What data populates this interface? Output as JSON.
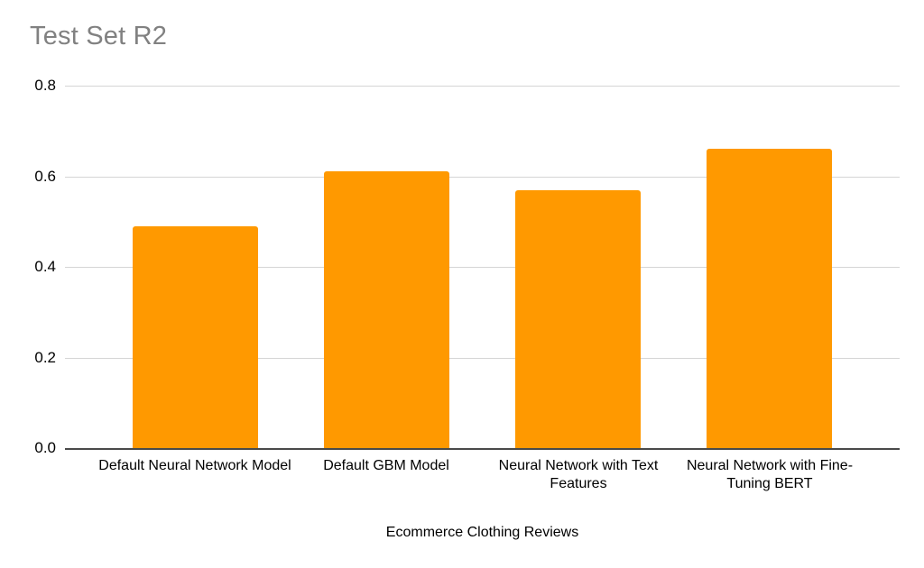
{
  "chart_data": {
    "type": "bar",
    "title": "Test Set R2",
    "categories": [
      "Default Neural Network Model",
      "Default GBM Model",
      "Neural Network with Text Features",
      "Neural Network with Fine-Tuning BERT"
    ],
    "values": [
      0.49,
      0.61,
      0.57,
      0.66
    ],
    "xlabel": "Ecommerce Clothing Reviews",
    "ylabel": "",
    "ylim": [
      0,
      0.8
    ],
    "yticks": [
      0,
      0.2,
      0.4,
      0.6,
      0.8
    ],
    "ytick_labels": [
      "0.0",
      "0.2",
      "0.4",
      "0.6",
      "0.8"
    ],
    "legend": "none",
    "grid": "horizontal"
  },
  "colors": {
    "bar": "#FF9900",
    "title_text": "#818181",
    "gridline": "#D5D5D5",
    "axis_line": "#4A4A4A",
    "label_text": "#000000",
    "background": "#FFFFFF"
  }
}
